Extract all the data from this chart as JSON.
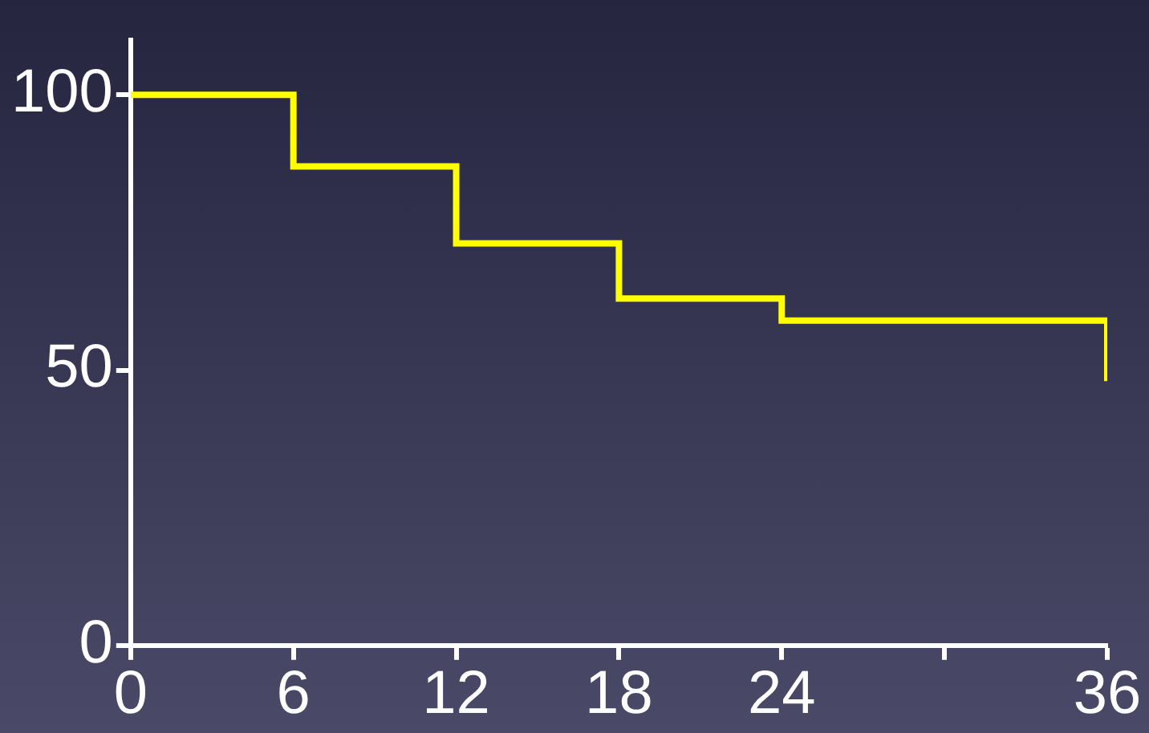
{
  "chart_data": {
    "type": "step",
    "x": [
      0,
      6,
      12,
      18,
      24,
      36,
      36
    ],
    "values": [
      100,
      87,
      73,
      63,
      59,
      59,
      48
    ],
    "color": "#ffff00",
    "xlim": [
      0,
      36
    ],
    "xticks": [
      0,
      6,
      12,
      18,
      24,
      {
        "value": 30,
        "label": null
      },
      36
    ],
    "ylim": [
      0,
      110
    ],
    "yticks": [
      0,
      50,
      100
    ],
    "grid": false,
    "legend": false
  }
}
